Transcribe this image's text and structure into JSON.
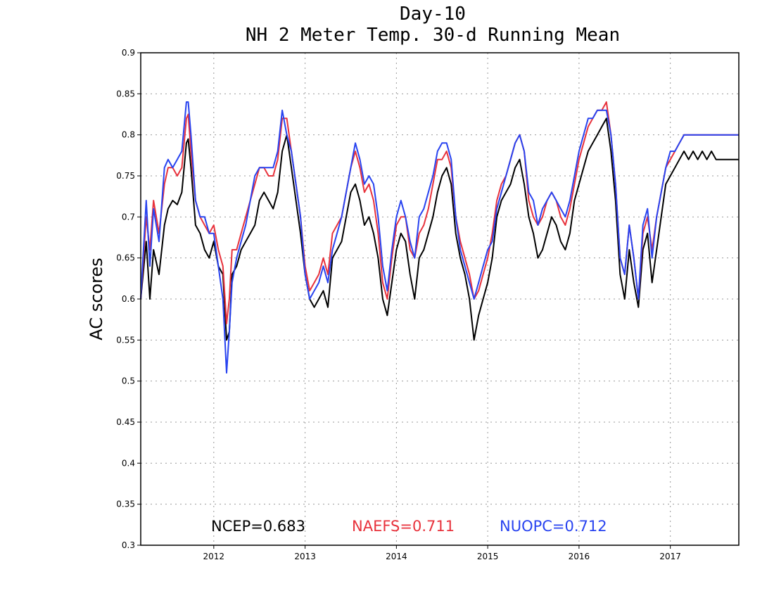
{
  "chart_data": {
    "type": "line",
    "title": [
      "Day-10",
      "NH 2 Meter Temp. 30-d Running Mean"
    ],
    "ylabel": "AC scores",
    "xlabel": "",
    "xlim": [
      2011.2,
      2017.75
    ],
    "ylim": [
      0.3,
      0.9
    ],
    "grid": true,
    "y_ticks": [
      "0.3",
      "0.35",
      "0.4",
      "0.45",
      "0.5",
      "0.55",
      "0.6",
      "0.65",
      "0.7",
      "0.75",
      "0.8",
      "0.85",
      "0.9"
    ],
    "x_ticks": [
      "2012",
      "2013",
      "2014",
      "2015",
      "2016",
      "2017"
    ],
    "legend": [
      {
        "label": "NCEP=0.683",
        "color": "#000000"
      },
      {
        "label": "NAEFS=0.711",
        "color": "#e8323c"
      },
      {
        "label": "NUOPC=0.712",
        "color": "#2843f0"
      }
    ],
    "series": [
      {
        "name": "NCEP",
        "color": "#000000",
        "x": [
          2011.2,
          2011.26,
          2011.3,
          2011.34,
          2011.4,
          2011.46,
          2011.5,
          2011.55,
          2011.6,
          2011.65,
          2011.7,
          2011.72,
          2011.75,
          2011.8,
          2011.85,
          2011.9,
          2011.95,
          2012.0,
          2012.05,
          2012.1,
          2012.14,
          2012.17,
          2012.2,
          2012.25,
          2012.3,
          2012.35,
          2012.4,
          2012.45,
          2012.5,
          2012.55,
          2012.6,
          2012.65,
          2012.7,
          2012.75,
          2012.8,
          2012.85,
          2012.9,
          2012.95,
          2013.0,
          2013.05,
          2013.1,
          2013.15,
          2013.2,
          2013.25,
          2013.3,
          2013.35,
          2013.4,
          2013.45,
          2013.5,
          2013.55,
          2013.6,
          2013.65,
          2013.7,
          2013.75,
          2013.8,
          2013.85,
          2013.9,
          2013.95,
          2014.0,
          2014.05,
          2014.1,
          2014.15,
          2014.2,
          2014.25,
          2014.3,
          2014.35,
          2014.4,
          2014.45,
          2014.5,
          2014.55,
          2014.6,
          2014.65,
          2014.7,
          2014.75,
          2014.8,
          2014.85,
          2014.9,
          2014.95,
          2015.0,
          2015.05,
          2015.1,
          2015.15,
          2015.2,
          2015.25,
          2015.3,
          2015.35,
          2015.4,
          2015.45,
          2015.5,
          2015.55,
          2015.6,
          2015.65,
          2015.7,
          2015.75,
          2015.8,
          2015.85,
          2015.9,
          2015.95,
          2016.0,
          2016.05,
          2016.1,
          2016.15,
          2016.2,
          2016.25,
          2016.3,
          2016.35,
          2016.4,
          2016.45,
          2016.5,
          2016.55,
          2016.6,
          2016.65,
          2016.7,
          2016.75,
          2016.8,
          2016.85,
          2016.9,
          2016.95,
          2017.0,
          2017.05,
          2017.1,
          2017.15,
          2017.2,
          2017.25,
          2017.3,
          2017.35,
          2017.4,
          2017.45,
          2017.5,
          2017.55,
          2017.6,
          2017.65,
          2017.7,
          2017.75
        ],
        "y": [
          0.6,
          0.67,
          0.6,
          0.66,
          0.63,
          0.69,
          0.71,
          0.72,
          0.715,
          0.73,
          0.79,
          0.795,
          0.76,
          0.69,
          0.68,
          0.66,
          0.65,
          0.67,
          0.64,
          0.63,
          0.55,
          0.56,
          0.63,
          0.64,
          0.66,
          0.67,
          0.68,
          0.69,
          0.72,
          0.73,
          0.72,
          0.71,
          0.73,
          0.78,
          0.8,
          0.76,
          0.72,
          0.68,
          0.63,
          0.6,
          0.59,
          0.6,
          0.61,
          0.59,
          0.65,
          0.66,
          0.67,
          0.7,
          0.73,
          0.74,
          0.72,
          0.69,
          0.7,
          0.68,
          0.65,
          0.6,
          0.58,
          0.62,
          0.66,
          0.68,
          0.67,
          0.63,
          0.6,
          0.65,
          0.66,
          0.68,
          0.7,
          0.73,
          0.75,
          0.76,
          0.74,
          0.68,
          0.65,
          0.63,
          0.6,
          0.55,
          0.58,
          0.6,
          0.62,
          0.65,
          0.7,
          0.72,
          0.73,
          0.74,
          0.76,
          0.77,
          0.74,
          0.7,
          0.68,
          0.65,
          0.66,
          0.68,
          0.7,
          0.69,
          0.67,
          0.66,
          0.68,
          0.72,
          0.74,
          0.76,
          0.78,
          0.79,
          0.8,
          0.81,
          0.82,
          0.78,
          0.72,
          0.63,
          0.6,
          0.66,
          0.62,
          0.59,
          0.66,
          0.68,
          0.62,
          0.66,
          0.7,
          0.74,
          0.75,
          0.76,
          0.77,
          0.78,
          0.77,
          0.78,
          0.77,
          0.78,
          0.77,
          0.78,
          0.77,
          0.77,
          0.77,
          0.77,
          0.77,
          0.77
        ]
      },
      {
        "name": "NAEFS",
        "color": "#e8323c",
        "x": [
          2011.2,
          2011.26,
          2011.3,
          2011.34,
          2011.4,
          2011.46,
          2011.5,
          2011.55,
          2011.6,
          2011.65,
          2011.7,
          2011.72,
          2011.75,
          2011.8,
          2011.85,
          2011.9,
          2011.95,
          2012.0,
          2012.05,
          2012.1,
          2012.14,
          2012.17,
          2012.2,
          2012.25,
          2012.3,
          2012.35,
          2012.4,
          2012.45,
          2012.5,
          2012.55,
          2012.6,
          2012.65,
          2012.7,
          2012.75,
          2012.8,
          2012.85,
          2012.9,
          2012.95,
          2013.0,
          2013.05,
          2013.1,
          2013.15,
          2013.2,
          2013.25,
          2013.3,
          2013.35,
          2013.4,
          2013.45,
          2013.5,
          2013.55,
          2013.6,
          2013.65,
          2013.7,
          2013.75,
          2013.8,
          2013.85,
          2013.9,
          2013.95,
          2014.0,
          2014.05,
          2014.1,
          2014.15,
          2014.2,
          2014.25,
          2014.3,
          2014.35,
          2014.4,
          2014.45,
          2014.5,
          2014.55,
          2014.6,
          2014.65,
          2014.7,
          2014.75,
          2014.8,
          2014.85,
          2014.9,
          2014.95,
          2015.0,
          2015.05,
          2015.1,
          2015.15,
          2015.2,
          2015.25,
          2015.3,
          2015.35,
          2015.4,
          2015.45,
          2015.5,
          2015.55,
          2015.6,
          2015.65,
          2015.7,
          2015.75,
          2015.8,
          2015.85,
          2015.9,
          2015.95,
          2016.0,
          2016.05,
          2016.1,
          2016.15,
          2016.2,
          2016.25,
          2016.3,
          2016.35,
          2016.4,
          2016.45,
          2016.5,
          2016.55,
          2016.6,
          2016.65,
          2016.7,
          2016.75,
          2016.8,
          2016.85,
          2016.9,
          2016.95,
          2017.0,
          2017.05,
          2017.1,
          2017.15,
          2017.2,
          2017.25,
          2017.3,
          2017.35,
          2017.4,
          2017.45,
          2017.5,
          2017.55,
          2017.6,
          2017.65,
          2017.7,
          2017.75
        ],
        "y": [
          0.6,
          0.7,
          0.66,
          0.72,
          0.68,
          0.74,
          0.76,
          0.76,
          0.75,
          0.76,
          0.82,
          0.825,
          0.78,
          0.72,
          0.7,
          0.69,
          0.68,
          0.69,
          0.66,
          0.64,
          0.57,
          0.6,
          0.66,
          0.66,
          0.68,
          0.7,
          0.72,
          0.74,
          0.76,
          0.76,
          0.75,
          0.75,
          0.77,
          0.82,
          0.82,
          0.78,
          0.74,
          0.7,
          0.64,
          0.61,
          0.62,
          0.63,
          0.65,
          0.63,
          0.68,
          0.69,
          0.7,
          0.73,
          0.76,
          0.78,
          0.76,
          0.73,
          0.74,
          0.72,
          0.68,
          0.62,
          0.6,
          0.65,
          0.69,
          0.7,
          0.7,
          0.66,
          0.65,
          0.68,
          0.69,
          0.71,
          0.74,
          0.77,
          0.77,
          0.78,
          0.76,
          0.7,
          0.67,
          0.65,
          0.63,
          0.6,
          0.61,
          0.63,
          0.65,
          0.68,
          0.72,
          0.74,
          0.75,
          0.77,
          0.79,
          0.8,
          0.78,
          0.72,
          0.7,
          0.69,
          0.7,
          0.72,
          0.73,
          0.72,
          0.7,
          0.69,
          0.71,
          0.74,
          0.77,
          0.79,
          0.81,
          0.82,
          0.83,
          0.83,
          0.84,
          0.8,
          0.74,
          0.65,
          0.63,
          0.69,
          0.65,
          0.6,
          0.68,
          0.7,
          0.66,
          0.7,
          0.73,
          0.76,
          0.77,
          0.78,
          0.79,
          0.8,
          0.8,
          0.8,
          0.8,
          0.8,
          0.8,
          0.8,
          0.8,
          0.8,
          0.8,
          0.8,
          0.8,
          0.8
        ]
      },
      {
        "name": "NUOPC",
        "color": "#2843f0",
        "x": [
          2011.2,
          2011.26,
          2011.3,
          2011.34,
          2011.4,
          2011.46,
          2011.5,
          2011.55,
          2011.6,
          2011.65,
          2011.7,
          2011.72,
          2011.75,
          2011.8,
          2011.85,
          2011.9,
          2011.95,
          2012.0,
          2012.05,
          2012.1,
          2012.14,
          2012.17,
          2012.2,
          2012.25,
          2012.3,
          2012.35,
          2012.4,
          2012.45,
          2012.5,
          2012.55,
          2012.6,
          2012.65,
          2012.7,
          2012.75,
          2012.8,
          2012.85,
          2012.9,
          2012.95,
          2013.0,
          2013.05,
          2013.1,
          2013.15,
          2013.2,
          2013.25,
          2013.3,
          2013.35,
          2013.4,
          2013.45,
          2013.5,
          2013.55,
          2013.6,
          2013.65,
          2013.7,
          2013.75,
          2013.8,
          2013.85,
          2013.9,
          2013.95,
          2014.0,
          2014.05,
          2014.1,
          2014.15,
          2014.2,
          2014.25,
          2014.3,
          2014.35,
          2014.4,
          2014.45,
          2014.5,
          2014.55,
          2014.6,
          2014.65,
          2014.7,
          2014.75,
          2014.8,
          2014.85,
          2014.9,
          2014.95,
          2015.0,
          2015.05,
          2015.1,
          2015.15,
          2015.2,
          2015.25,
          2015.3,
          2015.35,
          2015.4,
          2015.45,
          2015.5,
          2015.55,
          2015.6,
          2015.65,
          2015.7,
          2015.75,
          2015.8,
          2015.85,
          2015.9,
          2015.95,
          2016.0,
          2016.05,
          2016.1,
          2016.15,
          2016.2,
          2016.25,
          2016.3,
          2016.35,
          2016.4,
          2016.45,
          2016.5,
          2016.55,
          2016.6,
          2016.65,
          2016.7,
          2016.75,
          2016.8,
          2016.85,
          2016.9,
          2016.95,
          2017.0,
          2017.05,
          2017.1,
          2017.15,
          2017.2,
          2017.25,
          2017.3,
          2017.35,
          2017.4,
          2017.45,
          2017.5,
          2017.55,
          2017.6,
          2017.65,
          2017.7,
          2017.75
        ],
        "y": [
          0.6,
          0.72,
          0.64,
          0.71,
          0.67,
          0.76,
          0.77,
          0.76,
          0.77,
          0.78,
          0.84,
          0.84,
          0.8,
          0.72,
          0.7,
          0.7,
          0.68,
          0.68,
          0.64,
          0.6,
          0.51,
          0.56,
          0.62,
          0.65,
          0.67,
          0.69,
          0.72,
          0.75,
          0.76,
          0.76,
          0.76,
          0.76,
          0.78,
          0.83,
          0.8,
          0.78,
          0.74,
          0.7,
          0.63,
          0.6,
          0.61,
          0.62,
          0.64,
          0.62,
          0.66,
          0.68,
          0.7,
          0.73,
          0.76,
          0.79,
          0.77,
          0.74,
          0.75,
          0.74,
          0.7,
          0.64,
          0.61,
          0.66,
          0.7,
          0.72,
          0.7,
          0.67,
          0.65,
          0.7,
          0.71,
          0.73,
          0.75,
          0.78,
          0.79,
          0.79,
          0.77,
          0.7,
          0.66,
          0.64,
          0.62,
          0.6,
          0.62,
          0.64,
          0.66,
          0.67,
          0.71,
          0.73,
          0.75,
          0.77,
          0.79,
          0.8,
          0.78,
          0.73,
          0.72,
          0.69,
          0.71,
          0.72,
          0.73,
          0.72,
          0.71,
          0.7,
          0.72,
          0.75,
          0.78,
          0.8,
          0.82,
          0.82,
          0.83,
          0.83,
          0.83,
          0.8,
          0.74,
          0.65,
          0.63,
          0.69,
          0.65,
          0.6,
          0.69,
          0.71,
          0.65,
          0.7,
          0.73,
          0.76,
          0.78,
          0.78,
          0.79,
          0.8,
          0.8,
          0.8,
          0.8,
          0.8,
          0.8,
          0.8,
          0.8,
          0.8,
          0.8,
          0.8,
          0.8,
          0.8
        ]
      }
    ]
  }
}
